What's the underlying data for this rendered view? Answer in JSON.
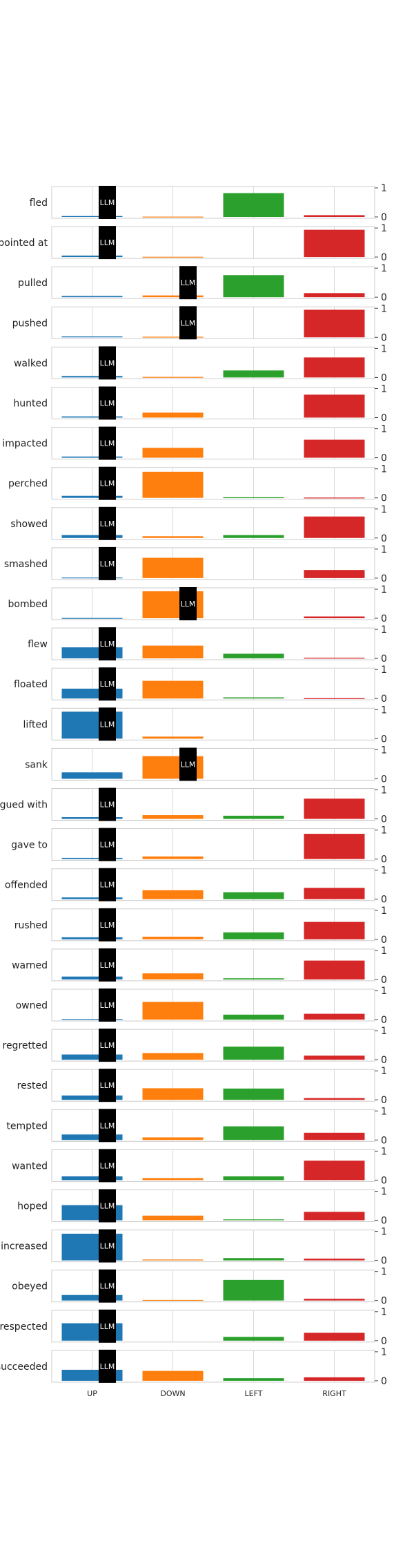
{
  "chart_data": {
    "type": "bar",
    "layout": "small-multiples",
    "categories": [
      "UP",
      "DOWN",
      "LEFT",
      "RIGHT"
    ],
    "colors": {
      "UP": "#1f77b4",
      "DOWN": "#ff7f0e",
      "LEFT": "#2ca02c",
      "RIGHT": "#d62728"
    },
    "marker_label": "LLM",
    "marker_color": "#000000",
    "ylim": [
      0,
      1
    ],
    "yticks": [
      "0",
      "1"
    ],
    "grid": true,
    "panels": [
      {
        "label": "fled",
        "values": [
          0.03,
          0.01,
          0.82,
          0.06
        ],
        "llm": "UP"
      },
      {
        "label": "pointed at",
        "values": [
          0.05,
          0.01,
          0.0,
          0.94
        ],
        "llm": "UP"
      },
      {
        "label": "pulled",
        "values": [
          0.04,
          0.06,
          0.76,
          0.14
        ],
        "llm": "DOWN"
      },
      {
        "label": "pushed",
        "values": [
          0.03,
          0.02,
          0.0,
          0.95
        ],
        "llm": "DOWN"
      },
      {
        "label": "walked",
        "values": [
          0.05,
          0.02,
          0.24,
          0.69
        ],
        "llm": "UP"
      },
      {
        "label": "hunted",
        "values": [
          0.04,
          0.17,
          0.0,
          0.79
        ],
        "llm": "UP"
      },
      {
        "label": "impacted",
        "values": [
          0.04,
          0.34,
          0.0,
          0.62
        ],
        "llm": "UP"
      },
      {
        "label": "perched",
        "values": [
          0.07,
          0.9,
          0.02,
          0.01
        ],
        "llm": "UP"
      },
      {
        "label": "showed",
        "values": [
          0.1,
          0.06,
          0.1,
          0.74
        ],
        "llm": "UP"
      },
      {
        "label": "smashed",
        "values": [
          0.02,
          0.7,
          0.0,
          0.28
        ],
        "llm": "UP"
      },
      {
        "label": "bombed",
        "values": [
          0.01,
          0.93,
          0.0,
          0.06
        ],
        "llm": "DOWN"
      },
      {
        "label": "flew",
        "values": [
          0.38,
          0.44,
          0.16,
          0.02
        ],
        "llm": "UP"
      },
      {
        "label": "floated",
        "values": [
          0.34,
          0.61,
          0.04,
          0.01
        ],
        "llm": "UP"
      },
      {
        "label": "lifted",
        "values": [
          0.93,
          0.07,
          0.0,
          0.0
        ],
        "llm": "UP"
      },
      {
        "label": "sank",
        "values": [
          0.22,
          0.78,
          0.0,
          0.0
        ],
        "llm": "DOWN"
      },
      {
        "label": "argued with",
        "values": [
          0.06,
          0.13,
          0.11,
          0.7
        ],
        "llm": "UP"
      },
      {
        "label": "gave to",
        "values": [
          0.04,
          0.09,
          0.0,
          0.87
        ],
        "llm": "UP"
      },
      {
        "label": "offended",
        "values": [
          0.06,
          0.31,
          0.24,
          0.39
        ],
        "llm": "UP"
      },
      {
        "label": "rushed",
        "values": [
          0.07,
          0.09,
          0.24,
          0.6
        ],
        "llm": "UP"
      },
      {
        "label": "warned",
        "values": [
          0.1,
          0.21,
          0.04,
          0.65
        ],
        "llm": "UP"
      },
      {
        "label": "owned",
        "values": [
          0.02,
          0.61,
          0.17,
          0.2
        ],
        "llm": "UP"
      },
      {
        "label": "regretted",
        "values": [
          0.18,
          0.23,
          0.45,
          0.14
        ],
        "llm": "UP"
      },
      {
        "label": "rested",
        "values": [
          0.15,
          0.4,
          0.39,
          0.06
        ],
        "llm": "UP"
      },
      {
        "label": "tempted",
        "values": [
          0.19,
          0.09,
          0.47,
          0.25
        ],
        "llm": "UP"
      },
      {
        "label": "wanted",
        "values": [
          0.13,
          0.07,
          0.13,
          0.67
        ],
        "llm": "UP"
      },
      {
        "label": "hoped",
        "values": [
          0.52,
          0.16,
          0.03,
          0.29
        ],
        "llm": "UP"
      },
      {
        "label": "increased",
        "values": [
          0.92,
          0.03,
          0.08,
          0.06
        ],
        "llm": "UP"
      },
      {
        "label": "obeyed",
        "values": [
          0.19,
          0.02,
          0.71,
          0.06
        ],
        "llm": "UP"
      },
      {
        "label": "respected",
        "values": [
          0.6,
          0.0,
          0.13,
          0.27
        ],
        "llm": "UP"
      },
      {
        "label": "succeeded",
        "values": [
          0.38,
          0.34,
          0.09,
          0.12
        ],
        "llm": "UP"
      }
    ]
  }
}
